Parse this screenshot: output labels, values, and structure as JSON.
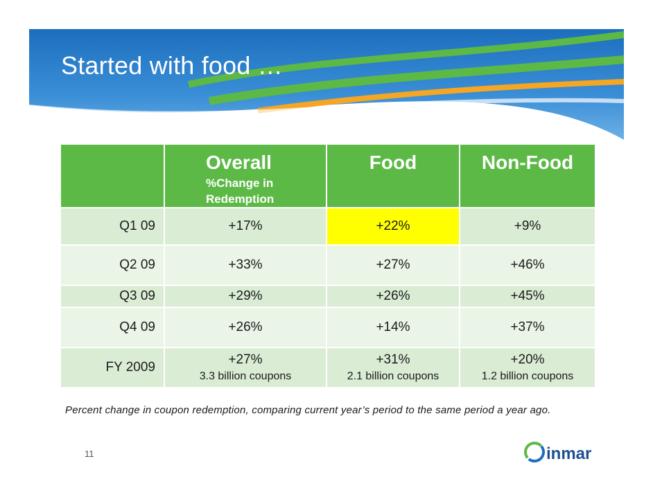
{
  "slide": {
    "title": "Started with food …",
    "page_number": "11",
    "footnote": "Percent change in coupon redemption, comparing current year’s period to the same period a year ago.",
    "logo_text": "inmar"
  },
  "table": {
    "header": {
      "overall": "Overall",
      "overall_sub": "%Change in",
      "overall_sub2": "Redemption",
      "food": "Food",
      "nonfood": "Non-Food"
    },
    "rows": [
      {
        "period": "Q1 09",
        "overall": "+17%",
        "food": "+22%",
        "nonfood": "+9%"
      },
      {
        "period": "Q2 09",
        "overall": "+33%",
        "food": "+27%",
        "nonfood": "+46%"
      },
      {
        "period": "Q3 09",
        "overall": "+29%",
        "food": "+26%",
        "nonfood": "+45%"
      },
      {
        "period": "Q4 09",
        "overall": "+26%",
        "food": "+14%",
        "nonfood": "+37%"
      },
      {
        "period": "FY 2009",
        "overall": "+27%",
        "overall_note": "3.3 billion coupons",
        "food": "+31%",
        "food_note": "2.1 billion coupons",
        "nonfood": "+20%",
        "nonfood_note": "1.2 billion coupons"
      }
    ]
  },
  "colors": {
    "header_green": "#5cb946",
    "row_green": "#dbecd5",
    "row_green_light": "#eaf4e7",
    "highlight": "#ffff00",
    "banner_blue": "#2b7dc8"
  }
}
